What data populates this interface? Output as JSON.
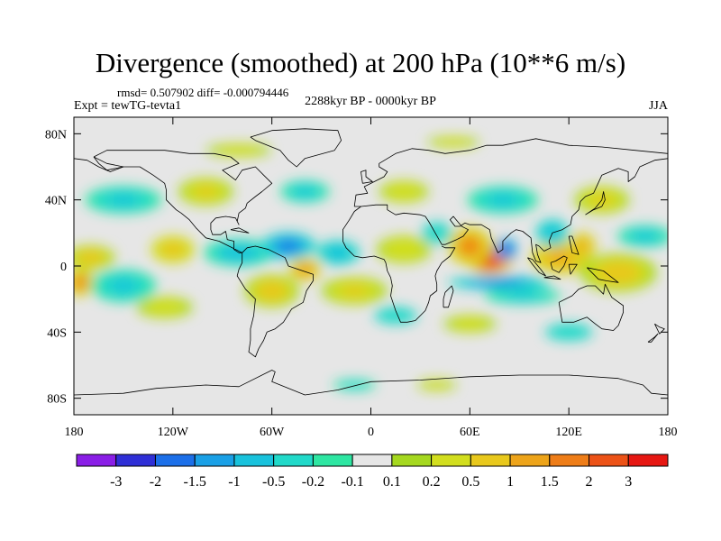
{
  "title": "Divergence (smoothed) at 200 hPa (10**6 m/s)",
  "stats": "rmsd= 0.507902 diff= -0.000794446",
  "experiment": "Expt = tewTG-tevta1",
  "period": "2288kyr BP - 0000kyr BP",
  "season": "JJA",
  "axes": {
    "lat_ticks": [
      {
        "value": 80,
        "label": "80N"
      },
      {
        "value": 40,
        "label": "40N"
      },
      {
        "value": 0,
        "label": "0"
      },
      {
        "value": -40,
        "label": "40S"
      },
      {
        "value": -80,
        "label": "80S"
      }
    ],
    "lon_ticks": [
      {
        "value": -180,
        "label": "180"
      },
      {
        "value": -120,
        "label": "120W"
      },
      {
        "value": -60,
        "label": "60W"
      },
      {
        "value": 0,
        "label": "0"
      },
      {
        "value": 60,
        "label": "60E"
      },
      {
        "value": 120,
        "label": "120E"
      },
      {
        "value": 180,
        "label": "180"
      }
    ]
  },
  "colorbar": {
    "colors": [
      "#8a1ee6",
      "#2f2fd6",
      "#1c6fe8",
      "#1aa0e6",
      "#19c2dc",
      "#21d9c9",
      "#2ee6a2",
      "#e6e6e6",
      "#a5d81f",
      "#d2de1e",
      "#e8c81c",
      "#eda41a",
      "#ee7d18",
      "#ec5217",
      "#e61712"
    ],
    "labels": [
      "-3",
      "-2",
      "-1.5",
      "-1",
      "-0.5",
      "-0.2",
      "-0.1",
      "0.1",
      "0.2",
      "0.5",
      "1",
      "1.5",
      "2",
      "3"
    ]
  },
  "anomalies": [
    {
      "lon": 72,
      "lat": 5,
      "v": 3.2,
      "rx": 18,
      "ry": 12
    },
    {
      "lon": 60,
      "lat": 12,
      "v": 1.6,
      "rx": 16,
      "ry": 14
    },
    {
      "lon": 82,
      "lat": 10,
      "v": -2.2,
      "rx": 8,
      "ry": 8
    },
    {
      "lon": 78,
      "lat": -10,
      "v": -1.6,
      "rx": 38,
      "ry": 5
    },
    {
      "lon": 92,
      "lat": -18,
      "v": -0.6,
      "rx": 28,
      "ry": 6
    },
    {
      "lon": 115,
      "lat": 5,
      "v": 1.3,
      "rx": 22,
      "ry": 12
    },
    {
      "lon": 128,
      "lat": 12,
      "v": 1.2,
      "rx": 10,
      "ry": 10
    },
    {
      "lon": 110,
      "lat": 20,
      "v": -0.8,
      "rx": 12,
      "ry": 10
    },
    {
      "lon": 150,
      "lat": -4,
      "v": 0.7,
      "rx": 28,
      "ry": 14
    },
    {
      "lon": 166,
      "lat": 18,
      "v": -0.5,
      "rx": 20,
      "ry": 8
    },
    {
      "lon": -170,
      "lat": 5,
      "v": 0.8,
      "rx": 18,
      "ry": 9
    },
    {
      "lon": -176,
      "lat": -10,
      "v": 1.6,
      "rx": 10,
      "ry": 10
    },
    {
      "lon": -150,
      "lat": -12,
      "v": -0.6,
      "rx": 24,
      "ry": 12
    },
    {
      "lon": -125,
      "lat": -25,
      "v": 0.4,
      "rx": 26,
      "ry": 10
    },
    {
      "lon": -120,
      "lat": 10,
      "v": 0.9,
      "rx": 16,
      "ry": 10
    },
    {
      "lon": -80,
      "lat": 8,
      "v": -0.7,
      "rx": 26,
      "ry": 10
    },
    {
      "lon": -50,
      "lat": 12,
      "v": -1.7,
      "rx": 20,
      "ry": 10
    },
    {
      "lon": -40,
      "lat": -2,
      "v": 1.5,
      "rx": 12,
      "ry": 8
    },
    {
      "lon": -20,
      "lat": 8,
      "v": -0.9,
      "rx": 16,
      "ry": 9
    },
    {
      "lon": -60,
      "lat": -15,
      "v": 0.8,
      "rx": 20,
      "ry": 12
    },
    {
      "lon": -10,
      "lat": -15,
      "v": 0.6,
      "rx": 24,
      "ry": 10
    },
    {
      "lon": 20,
      "lat": 10,
      "v": 0.5,
      "rx": 20,
      "ry": 10
    },
    {
      "lon": 40,
      "lat": 20,
      "v": -0.4,
      "rx": 14,
      "ry": 10
    },
    {
      "lon": 15,
      "lat": -30,
      "v": -0.4,
      "rx": 20,
      "ry": 8
    },
    {
      "lon": 60,
      "lat": -35,
      "v": 0.4,
      "rx": 24,
      "ry": 8
    },
    {
      "lon": 120,
      "lat": -40,
      "v": -0.4,
      "rx": 22,
      "ry": 8
    },
    {
      "lon": -150,
      "lat": 40,
      "v": -0.5,
      "rx": 28,
      "ry": 10
    },
    {
      "lon": -100,
      "lat": 45,
      "v": 0.6,
      "rx": 20,
      "ry": 10
    },
    {
      "lon": -40,
      "lat": 45,
      "v": -0.5,
      "rx": 18,
      "ry": 8
    },
    {
      "lon": 20,
      "lat": 45,
      "v": 0.5,
      "rx": 18,
      "ry": 8
    },
    {
      "lon": 80,
      "lat": 40,
      "v": -0.5,
      "rx": 26,
      "ry": 10
    },
    {
      "lon": 140,
      "lat": 40,
      "v": 0.6,
      "rx": 20,
      "ry": 10
    },
    {
      "lon": -80,
      "lat": 70,
      "v": 0.3,
      "rx": 30,
      "ry": 6
    },
    {
      "lon": 50,
      "lat": 75,
      "v": 0.3,
      "rx": 24,
      "ry": 5
    },
    {
      "lon": -10,
      "lat": -72,
      "v": -0.3,
      "rx": 20,
      "ry": 5
    },
    {
      "lon": 40,
      "lat": -72,
      "v": 0.3,
      "rx": 18,
      "ry": 5
    }
  ],
  "coastlines": [
    [
      [
        -168,
        66
      ],
      [
        -160,
        70
      ],
      [
        -140,
        70
      ],
      [
        -125,
        70
      ],
      [
        -110,
        68
      ],
      [
        -95,
        68
      ],
      [
        -85,
        66
      ],
      [
        -80,
        62
      ],
      [
        -90,
        58
      ],
      [
        -82,
        52
      ],
      [
        -78,
        58
      ],
      [
        -70,
        60
      ],
      [
        -65,
        55
      ],
      [
        -60,
        50
      ],
      [
        -66,
        45
      ],
      [
        -70,
        42
      ],
      [
        -75,
        38
      ],
      [
        -76,
        35
      ],
      [
        -80,
        32
      ],
      [
        -81,
        27
      ],
      [
        -80,
        25
      ],
      [
        -82,
        29
      ],
      [
        -88,
        30
      ],
      [
        -94,
        29
      ],
      [
        -97,
        26
      ],
      [
        -97,
        22
      ],
      [
        -96,
        19
      ],
      [
        -91,
        19
      ],
      [
        -88,
        21
      ],
      [
        -87,
        16
      ],
      [
        -83,
        15
      ],
      [
        -83,
        10
      ],
      [
        -80,
        8
      ],
      [
        -78,
        8
      ],
      [
        -86,
        12
      ],
      [
        -92,
        15
      ],
      [
        -100,
        17
      ],
      [
        -106,
        23
      ],
      [
        -110,
        28
      ],
      [
        -115,
        32
      ],
      [
        -118,
        34
      ],
      [
        -124,
        40
      ],
      [
        -124,
        46
      ],
      [
        -125,
        50
      ],
      [
        -132,
        55
      ],
      [
        -140,
        60
      ],
      [
        -150,
        60
      ],
      [
        -160,
        58
      ],
      [
        -165,
        62
      ],
      [
        -168,
        66
      ]
    ],
    [
      [
        -78,
        8
      ],
      [
        -75,
        11
      ],
      [
        -70,
        12
      ],
      [
        -62,
        10
      ],
      [
        -52,
        5
      ],
      [
        -50,
        0
      ],
      [
        -44,
        -2
      ],
      [
        -35,
        -5
      ],
      [
        -35,
        -9
      ],
      [
        -39,
        -15
      ],
      [
        -41,
        -22
      ],
      [
        -48,
        -26
      ],
      [
        -53,
        -34
      ],
      [
        -58,
        -38
      ],
      [
        -63,
        -40
      ],
      [
        -65,
        -45
      ],
      [
        -68,
        -50
      ],
      [
        -70,
        -55
      ],
      [
        -74,
        -52
      ],
      [
        -73,
        -45
      ],
      [
        -73,
        -38
      ],
      [
        -71,
        -30
      ],
      [
        -70,
        -20
      ],
      [
        -76,
        -14
      ],
      [
        -81,
        -6
      ],
      [
        -80,
        -2
      ],
      [
        -78,
        2
      ],
      [
        -78,
        8
      ]
    ],
    [
      [
        -10,
        36
      ],
      [
        -9,
        43
      ],
      [
        -2,
        44
      ],
      [
        -4,
        48
      ],
      [
        2,
        51
      ],
      [
        8,
        54
      ],
      [
        10,
        57
      ],
      [
        5,
        60
      ],
      [
        5,
        62
      ],
      [
        15,
        68
      ],
      [
        25,
        71
      ],
      [
        35,
        70
      ],
      [
        45,
        68
      ],
      [
        60,
        70
      ],
      [
        70,
        73
      ],
      [
        80,
        73
      ],
      [
        100,
        77
      ],
      [
        120,
        73
      ],
      [
        140,
        72
      ],
      [
        160,
        70
      ],
      [
        180,
        68
      ]
    ],
    [
      [
        180,
        65
      ],
      [
        172,
        64
      ],
      [
        163,
        60
      ],
      [
        160,
        54
      ],
      [
        156,
        51
      ],
      [
        156,
        57
      ],
      [
        150,
        59
      ],
      [
        140,
        55
      ],
      [
        135,
        44
      ],
      [
        130,
        42
      ],
      [
        127,
        39
      ],
      [
        126,
        34
      ],
      [
        122,
        30
      ],
      [
        121,
        25
      ],
      [
        116,
        22
      ],
      [
        110,
        20
      ],
      [
        108,
        15
      ],
      [
        109,
        11
      ],
      [
        105,
        9
      ],
      [
        102,
        12
      ],
      [
        100,
        13
      ],
      [
        101,
        7
      ],
      [
        103,
        2
      ],
      [
        100,
        3
      ],
      [
        98,
        8
      ],
      [
        97,
        17
      ],
      [
        92,
        21
      ],
      [
        88,
        22
      ],
      [
        85,
        20
      ],
      [
        80,
        15
      ],
      [
        80,
        10
      ],
      [
        77,
        8
      ],
      [
        73,
        17
      ],
      [
        72,
        22
      ],
      [
        67,
        25
      ],
      [
        60,
        25
      ],
      [
        57,
        26
      ],
      [
        54,
        24
      ],
      [
        51,
        24
      ],
      [
        48,
        28
      ],
      [
        50,
        30
      ],
      [
        55,
        24
      ],
      [
        57,
        23
      ],
      [
        59,
        22
      ],
      [
        56,
        18
      ],
      [
        52,
        16
      ],
      [
        45,
        13
      ],
      [
        43,
        13
      ],
      [
        39,
        20
      ],
      [
        35,
        27
      ],
      [
        33,
        30
      ],
      [
        30,
        31
      ],
      [
        20,
        32
      ],
      [
        15,
        31
      ],
      [
        10,
        34
      ],
      [
        10,
        37
      ],
      [
        3,
        37
      ],
      [
        -6,
        36
      ],
      [
        -10,
        36
      ]
    ],
    [
      [
        -6,
        36
      ],
      [
        -10,
        33
      ],
      [
        -13,
        28
      ],
      [
        -17,
        22
      ],
      [
        -17,
        15
      ],
      [
        -15,
        11
      ],
      [
        -10,
        6
      ],
      [
        -5,
        5
      ],
      [
        2,
        6
      ],
      [
        8,
        4
      ],
      [
        9,
        2
      ],
      [
        10,
        -3
      ],
      [
        12,
        -7
      ],
      [
        13,
        -12
      ],
      [
        12,
        -18
      ],
      [
        15,
        -27
      ],
      [
        18,
        -34
      ],
      [
        22,
        -34
      ],
      [
        27,
        -33
      ],
      [
        33,
        -27
      ],
      [
        35,
        -22
      ],
      [
        36,
        -18
      ],
      [
        40,
        -15
      ],
      [
        40,
        -11
      ],
      [
        39,
        -6
      ],
      [
        40,
        -3
      ],
      [
        43,
        2
      ],
      [
        48,
        6
      ],
      [
        51,
        11
      ],
      [
        45,
        11
      ],
      [
        43,
        12
      ]
    ],
    [
      [
        44,
        -25
      ],
      [
        47,
        -25
      ],
      [
        50,
        -15
      ],
      [
        49,
        -12
      ],
      [
        45,
        -16
      ],
      [
        44,
        -20
      ],
      [
        44,
        -25
      ]
    ],
    [
      [
        114,
        -22
      ],
      [
        116,
        -34
      ],
      [
        123,
        -34
      ],
      [
        131,
        -31
      ],
      [
        136,
        -35
      ],
      [
        140,
        -38
      ],
      [
        147,
        -39
      ],
      [
        150,
        -36
      ],
      [
        153,
        -28
      ],
      [
        153,
        -24
      ],
      [
        146,
        -19
      ],
      [
        142,
        -11
      ],
      [
        141,
        -17
      ],
      [
        136,
        -12
      ],
      [
        131,
        -12
      ],
      [
        126,
        -14
      ],
      [
        122,
        -18
      ],
      [
        114,
        -22
      ]
    ],
    [
      [
        95,
        5
      ],
      [
        98,
        4
      ],
      [
        103,
        -2
      ],
      [
        106,
        -6
      ],
      [
        102,
        -4
      ],
      [
        98,
        1
      ],
      [
        95,
        5
      ]
    ],
    [
      [
        105,
        -7
      ],
      [
        115,
        -8
      ],
      [
        111,
        -6
      ],
      [
        105,
        -7
      ]
    ],
    [
      [
        109,
        2
      ],
      [
        112,
        3
      ],
      [
        117,
        6
      ],
      [
        119,
        5
      ],
      [
        117,
        0
      ],
      [
        114,
        -4
      ],
      [
        110,
        -2
      ],
      [
        109,
        2
      ]
    ],
    [
      [
        120,
        1
      ],
      [
        125,
        1
      ],
      [
        121,
        -5
      ],
      [
        120,
        1
      ]
    ],
    [
      [
        131,
        -1
      ],
      [
        141,
        -3
      ],
      [
        150,
        -10
      ],
      [
        143,
        -9
      ],
      [
        138,
        -8
      ],
      [
        131,
        -1
      ]
    ],
    [
      [
        130,
        31
      ],
      [
        135,
        34
      ],
      [
        140,
        36
      ],
      [
        142,
        40
      ],
      [
        141,
        45
      ],
      [
        140,
        40
      ],
      [
        136,
        35
      ],
      [
        130,
        31
      ]
    ],
    [
      [
        120,
        18
      ],
      [
        122,
        18
      ],
      [
        126,
        7
      ],
      [
        122,
        8
      ],
      [
        120,
        18
      ]
    ],
    [
      [
        -73,
        78
      ],
      [
        -60,
        82
      ],
      [
        -40,
        83
      ],
      [
        -20,
        82
      ],
      [
        -18,
        76
      ],
      [
        -22,
        70
      ],
      [
        -40,
        65
      ],
      [
        -45,
        60
      ],
      [
        -50,
        64
      ],
      [
        -55,
        70
      ],
      [
        -70,
        76
      ],
      [
        -73,
        78
      ]
    ],
    [
      [
        -5,
        50
      ],
      [
        1,
        51
      ],
      [
        -3,
        54
      ],
      [
        -3,
        58
      ],
      [
        -6,
        57
      ],
      [
        -5,
        50
      ]
    ],
    [
      [
        -85,
        22
      ],
      [
        -80,
        23
      ],
      [
        -74,
        20
      ],
      [
        -80,
        21
      ],
      [
        -85,
        22
      ]
    ],
    [
      [
        -180,
        -78
      ],
      [
        -150,
        -77
      ],
      [
        -130,
        -74
      ],
      [
        -100,
        -72
      ],
      [
        -80,
        -73
      ],
      [
        -60,
        -63
      ],
      [
        -58,
        -64
      ],
      [
        -60,
        -70
      ],
      [
        -40,
        -78
      ],
      [
        -20,
        -75
      ],
      [
        0,
        -70
      ],
      [
        30,
        -69
      ],
      [
        60,
        -67
      ],
      [
        90,
        -66
      ],
      [
        120,
        -66
      ],
      [
        150,
        -68
      ],
      [
        165,
        -72
      ],
      [
        170,
        -77
      ],
      [
        180,
        -78
      ]
    ],
    [
      [
        172,
        -35
      ],
      [
        175,
        -37
      ],
      [
        178,
        -38
      ],
      [
        175,
        -41
      ],
      [
        172,
        -35
      ]
    ],
    [
      [
        168,
        -46
      ],
      [
        172,
        -43
      ],
      [
        174,
        -41
      ],
      [
        170,
        -46
      ],
      [
        168,
        -46
      ]
    ],
    [
      [
        -180,
        65
      ],
      [
        -172,
        64
      ],
      [
        -165,
        60
      ],
      [
        -158,
        57
      ],
      [
        -150,
        60
      ],
      [
        -160,
        62
      ],
      [
        -168,
        66
      ]
    ]
  ]
}
